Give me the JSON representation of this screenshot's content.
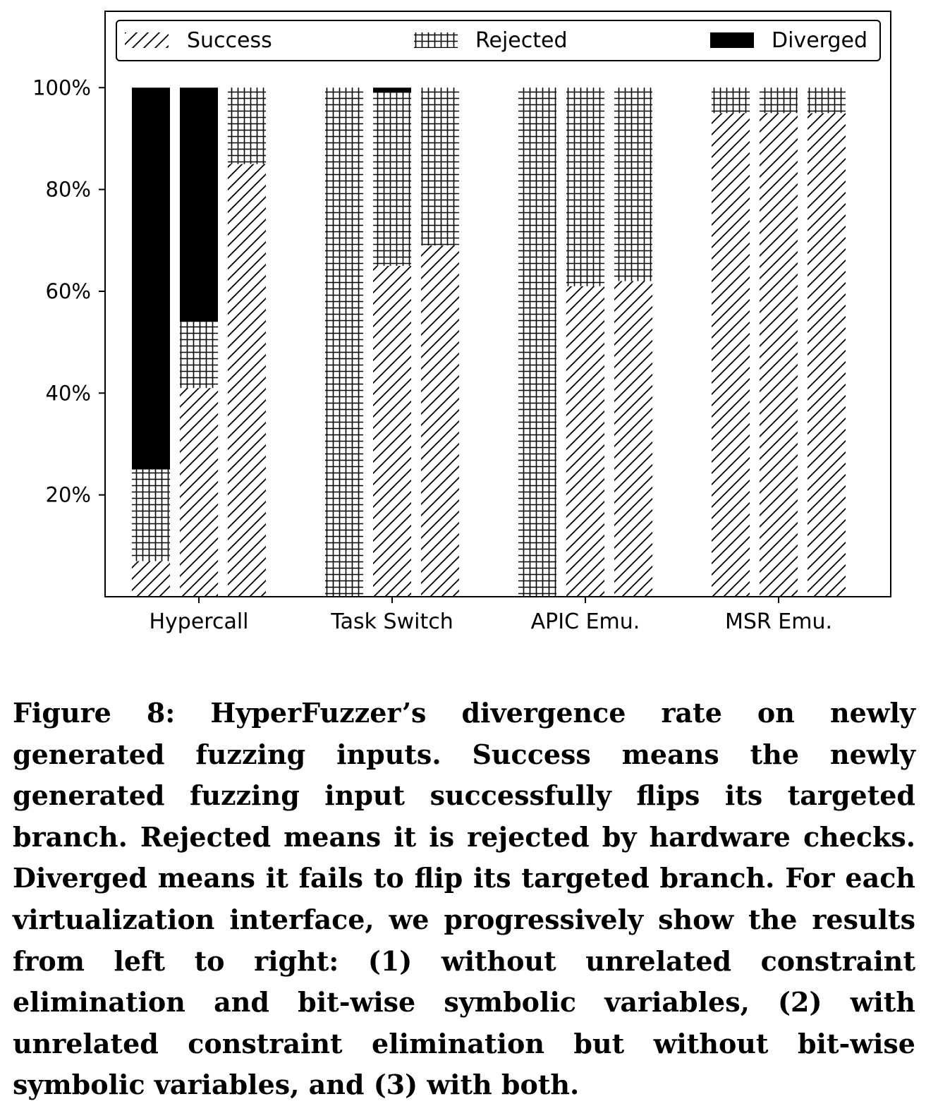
{
  "chart_data": {
    "type": "bar",
    "stacked": true,
    "categories": [
      "Hypercall",
      "Task Switch",
      "APIC Emu.",
      "MSR Emu."
    ],
    "bars_per_category": 3,
    "series": [
      {
        "name": "Success",
        "pattern": "hatch-diagonal",
        "values": [
          [
            7,
            41,
            85
          ],
          [
            0,
            65,
            69
          ],
          [
            0,
            61,
            62
          ],
          [
            95,
            95,
            95
          ]
        ]
      },
      {
        "name": "Rejected",
        "pattern": "hatch-grid",
        "values": [
          [
            18,
            13,
            15
          ],
          [
            100,
            34,
            31
          ],
          [
            100,
            39,
            38
          ],
          [
            5,
            5,
            5
          ]
        ]
      },
      {
        "name": "Diverged",
        "pattern": "solid-black",
        "values": [
          [
            75,
            46,
            0
          ],
          [
            0,
            1,
            0
          ],
          [
            0,
            0,
            0
          ],
          [
            0,
            0,
            0
          ]
        ]
      }
    ],
    "yticks": [
      20,
      40,
      60,
      80,
      100
    ],
    "ytick_labels": [
      "20%",
      "40%",
      "60%",
      "80%",
      "100%"
    ],
    "ylim": [
      0,
      115
    ],
    "title": "",
    "xlabel": "",
    "ylabel": "",
    "grid": false,
    "legend_position": "top",
    "colors": {
      "ink": "#000000",
      "background": "#ffffff"
    }
  },
  "caption": "Figure 8: HyperFuzzer’s divergence rate on newly generated fuzzing inputs. Success means the newly generated fuzzing input successfully flips its targeted branch. Rejected means it is rejected by hardware checks. Diverged means it fails to flip its targeted branch. For each virtualization interface, we progressively show the results from left to right: (1) without unrelated constraint elimination and bit-wise symbolic variables, (2) with unrelated constraint elimination but without bit-wise symbolic variables, and (3) with both."
}
